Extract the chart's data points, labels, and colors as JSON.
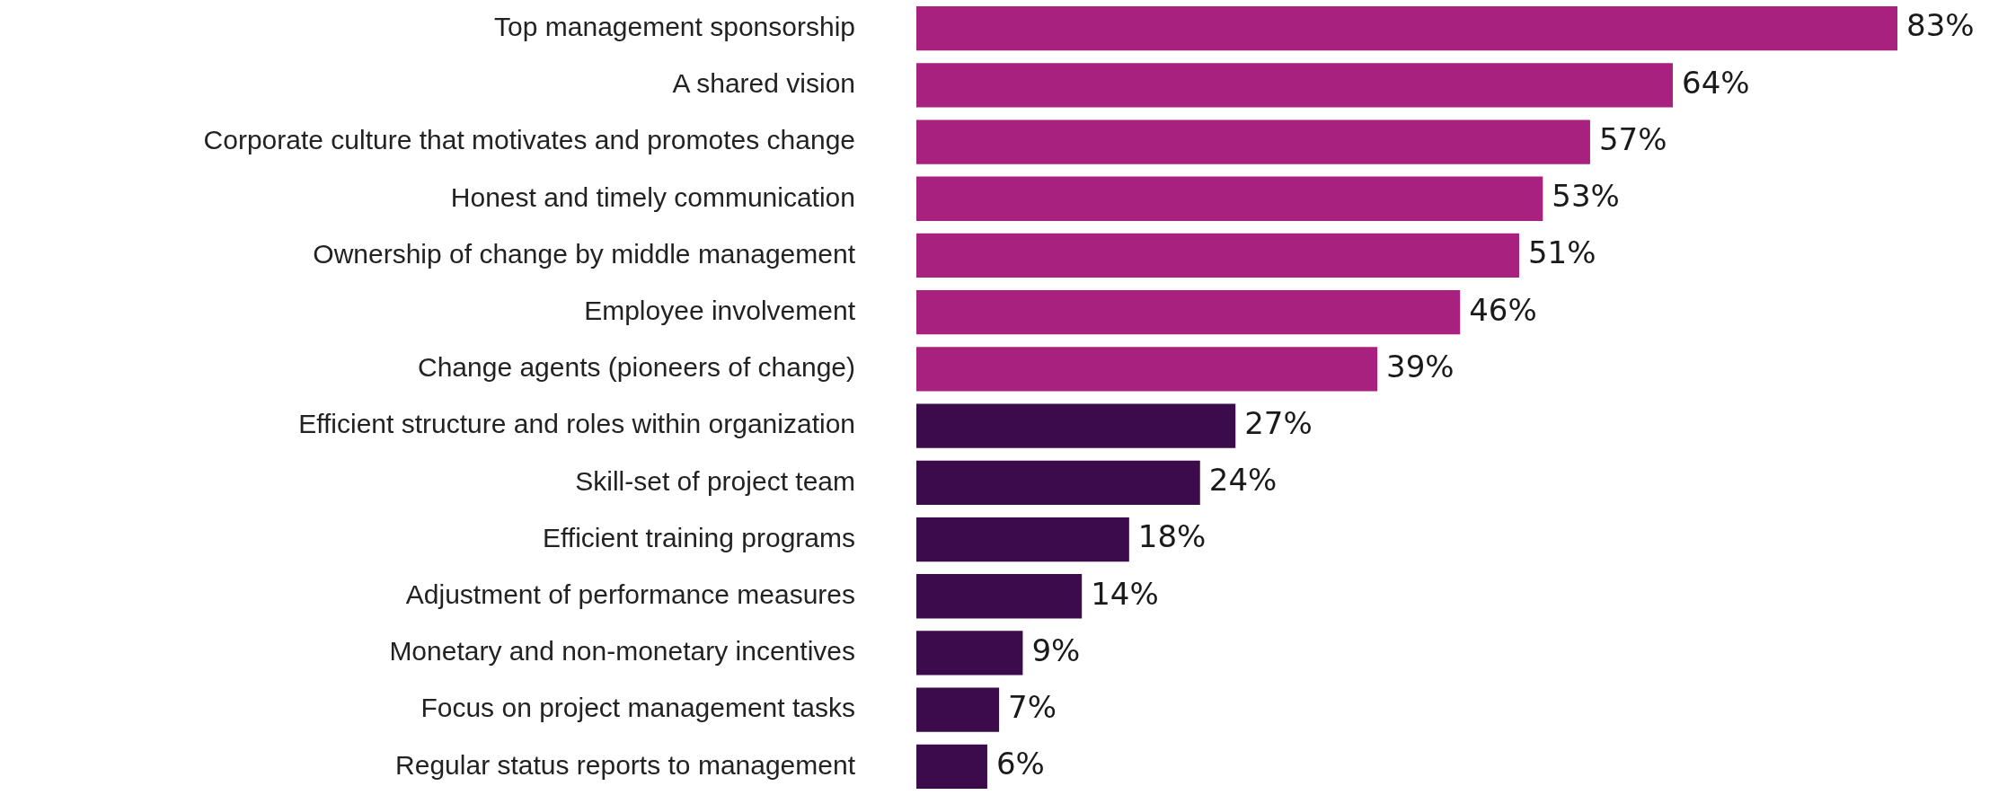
{
  "chart_data": {
    "type": "bar",
    "orientation": "horizontal",
    "categories": [
      "Top management sponsorship",
      "A shared vision",
      "Corporate culture that motivates and promotes change",
      "Honest and timely communication",
      "Ownership of change by middle management",
      "Employee involvement",
      "Change agents (pioneers of change)",
      "Efficient structure and roles within organization",
      "Skill-set of project team",
      "Efficient training programs",
      "Adjustment of performance measures",
      "Monetary and non-monetary incentives",
      "Focus on project management tasks",
      "Regular status reports to management"
    ],
    "values": [
      83,
      64,
      57,
      53,
      51,
      46,
      39,
      27,
      24,
      18,
      14,
      9,
      7,
      6
    ],
    "value_labels": [
      "83%",
      "64%",
      "57%",
      "53%",
      "51%",
      "46%",
      "39%",
      "27%",
      "24%",
      "18%",
      "14%",
      "9%",
      "7%",
      "6%"
    ],
    "colors": [
      "#a8217f",
      "#a8217f",
      "#a8217f",
      "#a8217f",
      "#a8217f",
      "#a8217f",
      "#a8217f",
      "#3b0b4c",
      "#3b0b4c",
      "#3b0b4c",
      "#3b0b4c",
      "#3b0b4c",
      "#3b0b4c",
      "#3b0b4c"
    ],
    "data_labels": false
  }
}
